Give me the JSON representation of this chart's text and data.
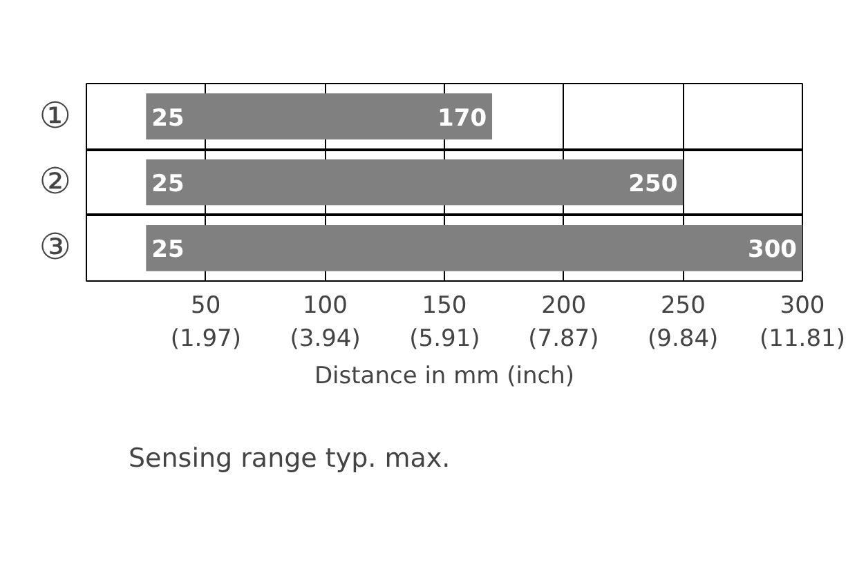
{
  "chart_data": {
    "type": "bar",
    "orientation": "horizontal",
    "xlabel": "Distance in mm (inch)",
    "categories": [
      "①",
      "②",
      "③"
    ],
    "series": [
      {
        "name": "Sensing range typ. max.",
        "color": "#808080",
        "base": [
          25,
          25,
          25
        ],
        "values": [
          145,
          225,
          275
        ]
      }
    ],
    "xlim": [
      0,
      300
    ],
    "xticks": [
      50,
      100,
      150,
      200,
      250,
      300
    ],
    "x2lim": [
      0,
      11.81
    ],
    "x2ticks": [
      {
        "value": 1.97,
        "label": "(1.97)"
      },
      {
        "value": 3.94,
        "label": "(3.94)"
      },
      {
        "value": 5.91,
        "label": "(5.91)"
      },
      {
        "value": 7.87,
        "label": "(7.87)"
      },
      {
        "value": 9.84,
        "label": "(9.84)"
      },
      {
        "value": 11.81,
        "label": "(11.81)"
      }
    ],
    "grid": "x",
    "legend": "bottom left",
    "annotations": [
      "25",
      "170",
      "25",
      "250",
      "25",
      "300"
    ]
  }
}
